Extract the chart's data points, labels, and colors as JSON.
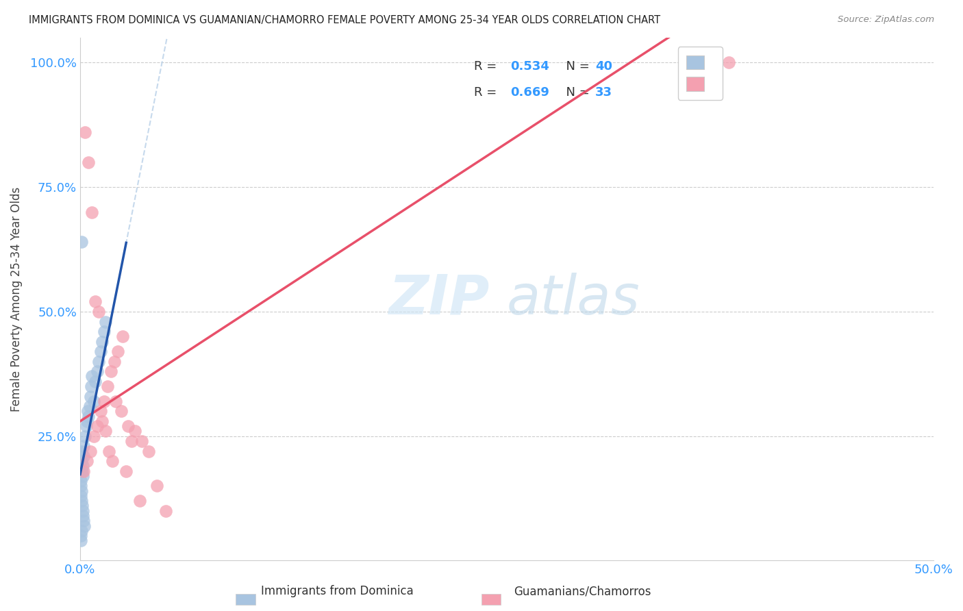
{
  "title": "IMMIGRANTS FROM DOMINICA VS GUAMANIAN/CHAMORRO FEMALE POVERTY AMONG 25-34 YEAR OLDS CORRELATION CHART",
  "source": "Source: ZipAtlas.com",
  "ylabel": "Female Poverty Among 25-34 Year Olds",
  "xlim": [
    0.0,
    0.5
  ],
  "ylim": [
    0.0,
    1.05
  ],
  "watermark_zip": "ZIP",
  "watermark_atlas": "atlas",
  "legend_R1": "0.534",
  "legend_N1": "40",
  "legend_R2": "0.669",
  "legend_N2": "33",
  "legend_label1": "Immigrants from Dominica",
  "legend_label2": "Guamanians/Chamorros",
  "color_blue": "#a8c4e0",
  "color_pink": "#f4a0b0",
  "line_color_blue": "#2255aa",
  "line_color_pink": "#e8506a",
  "dashed_color_blue": "#b8d0e8",
  "tick_color": "#3399ff",
  "title_color": "#222222",
  "source_color": "#888888",
  "ylabel_color": "#444444",
  "grid_color": "#cccccc",
  "blue_x": [
    0.0008,
    0.001,
    0.0012,
    0.0005,
    0.0015,
    0.002,
    0.0018,
    0.0022,
    0.003,
    0.0035,
    0.004,
    0.0045,
    0.005,
    0.0055,
    0.006,
    0.0065,
    0.007,
    0.008,
    0.009,
    0.01,
    0.011,
    0.012,
    0.013,
    0.014,
    0.015,
    0.0005,
    0.0008,
    0.001,
    0.0012,
    0.0015,
    0.0018,
    0.002,
    0.0025,
    0.001,
    0.0008,
    0.0006,
    0.0004,
    0.0003,
    0.0002,
    0.0001
  ],
  "blue_y": [
    0.2,
    0.22,
    0.18,
    0.15,
    0.19,
    0.21,
    0.17,
    0.23,
    0.25,
    0.27,
    0.28,
    0.3,
    0.29,
    0.31,
    0.33,
    0.35,
    0.37,
    0.32,
    0.36,
    0.38,
    0.4,
    0.42,
    0.44,
    0.46,
    0.48,
    0.13,
    0.14,
    0.12,
    0.11,
    0.1,
    0.09,
    0.08,
    0.07,
    0.64,
    0.06,
    0.05,
    0.04,
    0.16,
    0.18,
    0.2
  ],
  "pink_x": [
    0.002,
    0.004,
    0.006,
    0.008,
    0.01,
    0.012,
    0.014,
    0.016,
    0.018,
    0.02,
    0.022,
    0.025,
    0.028,
    0.032,
    0.036,
    0.04,
    0.045,
    0.05,
    0.003,
    0.005,
    0.007,
    0.009,
    0.011,
    0.013,
    0.015,
    0.017,
    0.019,
    0.021,
    0.024,
    0.027,
    0.03,
    0.035,
    0.38
  ],
  "pink_y": [
    0.18,
    0.2,
    0.22,
    0.25,
    0.27,
    0.3,
    0.32,
    0.35,
    0.38,
    0.4,
    0.42,
    0.45,
    0.27,
    0.26,
    0.24,
    0.22,
    0.15,
    0.1,
    0.86,
    0.8,
    0.7,
    0.52,
    0.5,
    0.28,
    0.26,
    0.22,
    0.2,
    0.32,
    0.3,
    0.18,
    0.24,
    0.12,
    1.0
  ]
}
